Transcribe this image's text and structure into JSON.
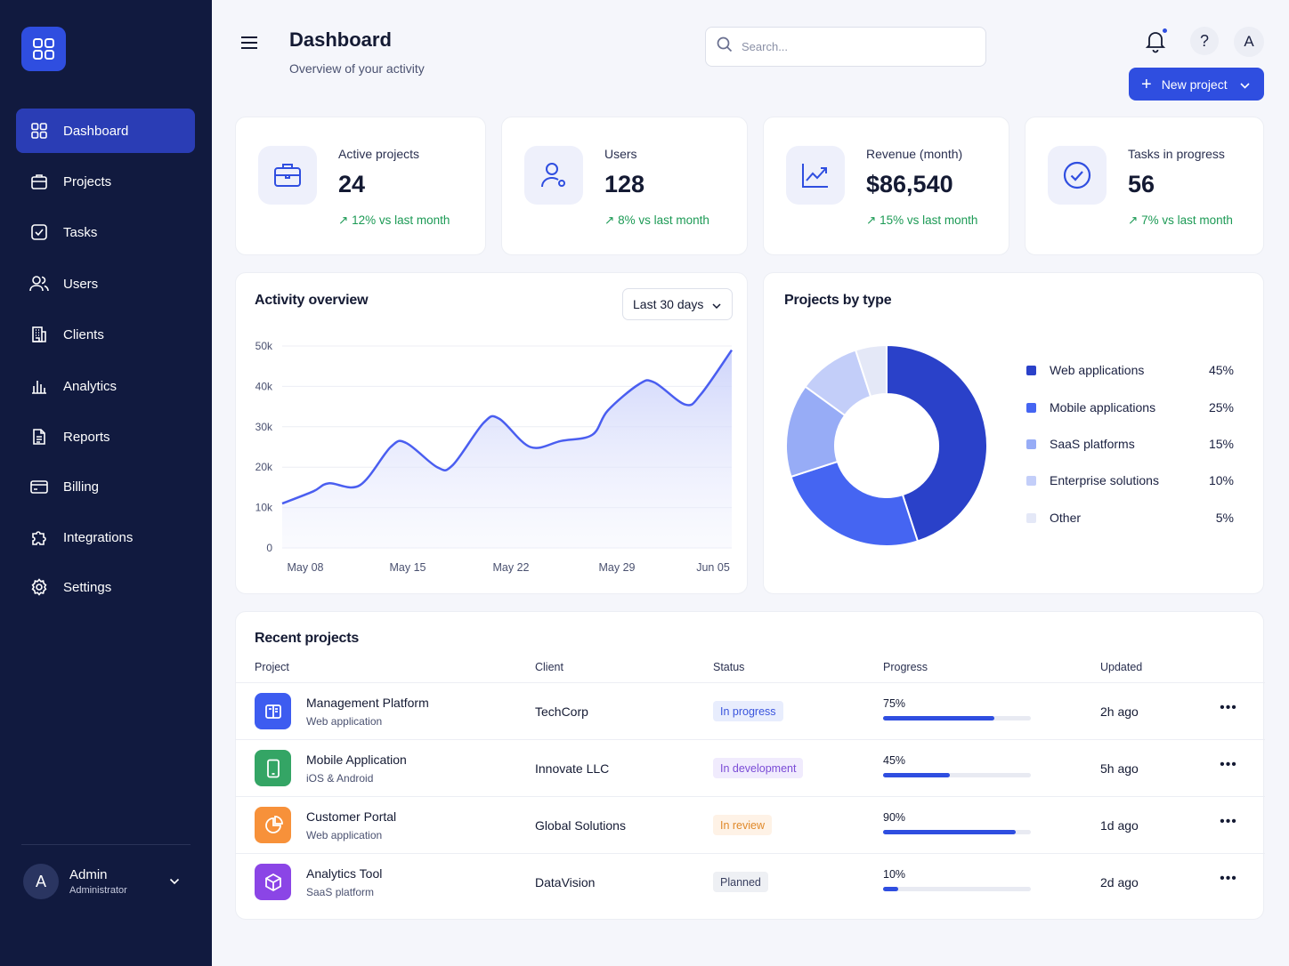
{
  "sidebar": {
    "items": [
      {
        "label": "Dashboard",
        "icon": "grid-icon",
        "active": true
      },
      {
        "label": "Projects",
        "icon": "briefcase-icon"
      },
      {
        "label": "Tasks",
        "icon": "checkbox-icon"
      },
      {
        "label": "Users",
        "icon": "users-icon"
      },
      {
        "label": "Clients",
        "icon": "building-icon"
      },
      {
        "label": "Analytics",
        "icon": "bar-chart-icon"
      },
      {
        "label": "Reports",
        "icon": "document-icon"
      },
      {
        "label": "Billing",
        "icon": "credit-card-icon"
      },
      {
        "label": "Integrations",
        "icon": "puzzle-icon"
      },
      {
        "label": "Settings",
        "icon": "gear-icon"
      }
    ],
    "user": {
      "initial": "A",
      "name": "Admin",
      "role": "Administrator"
    }
  },
  "header": {
    "title": "Dashboard",
    "subtitle": "Overview of your activity",
    "search_placeholder": "Search...",
    "help_label": "?",
    "user_initial": "A",
    "new_button": "New project"
  },
  "stats": [
    {
      "label": "Active projects",
      "value": "24",
      "change": "12% vs last month",
      "icon": "briefcase-icon"
    },
    {
      "label": "Users",
      "value": "128",
      "change": "8% vs last month",
      "icon": "user-icon"
    },
    {
      "label": "Revenue (month)",
      "value": "$86,540",
      "change": "15% vs last month",
      "icon": "trend-up-icon"
    },
    {
      "label": "Tasks in progress",
      "value": "56",
      "change": "7% vs last month",
      "icon": "check-circle-icon"
    }
  ],
  "activity": {
    "title": "Activity overview",
    "range": "Last 30 days"
  },
  "projects_type": {
    "title": "Projects by type"
  },
  "chart_data": [
    {
      "type": "area",
      "title": "Activity overview",
      "ylim": [
        0,
        50000
      ],
      "yticks": [
        "0",
        "10k",
        "20k",
        "30k",
        "40k",
        "50k"
      ],
      "xticks": [
        "May 08",
        "May 15",
        "May 22",
        "May 29",
        "Jun 05"
      ],
      "x": [
        "May 07",
        "May 09",
        "May 10",
        "May 12",
        "May 14",
        "May 15",
        "May 17",
        "May 18",
        "May 20",
        "May 21",
        "May 23",
        "May 25",
        "May 27",
        "May 28",
        "May 30",
        "May 31",
        "Jun 02",
        "Jun 03",
        "Jun 05"
      ],
      "values": [
        11000,
        14000,
        16000,
        15500,
        25000,
        26000,
        20000,
        20500,
        31000,
        32000,
        25000,
        26500,
        28000,
        34000,
        40500,
        41000,
        35500,
        38000,
        49000
      ],
      "grid": true,
      "colors": {
        "line": "#4a5ef0",
        "fill": "#dfe3fb"
      }
    },
    {
      "type": "pie",
      "title": "Projects by type",
      "donut": true,
      "categories": [
        "Web applications",
        "Mobile applications",
        "SaaS platforms",
        "Enterprise solutions",
        "Other"
      ],
      "values": [
        45,
        25,
        15,
        10,
        5
      ],
      "labels": [
        "45%",
        "25%",
        "15%",
        "10%",
        "5%"
      ],
      "colors": [
        "#2a41c9",
        "#4565f2",
        "#97acf6",
        "#c3cef9",
        "#e4e8f7"
      ],
      "legend": "right"
    }
  ],
  "recent": {
    "title": "Recent projects",
    "columns": [
      "Project",
      "Client",
      "Status",
      "Progress",
      "Updated"
    ],
    "rows": [
      {
        "name": "Management Platform",
        "type": "Web application",
        "client": "TechCorp",
        "status": "In progress",
        "status_bg": "#e8edfd",
        "status_fg": "#3a55dd",
        "progress": "75%",
        "progress_value": 0.75,
        "updated": "2h ago",
        "icon": "board-icon",
        "icon_color": "#3d5cf0",
        "more": "•••"
      },
      {
        "name": "Mobile Application",
        "type": "iOS & Android",
        "client": "Innovate LLC",
        "status": "In development",
        "status_bg": "#f0ebfd",
        "status_fg": "#7a4bd6",
        "progress": "45%",
        "progress_value": 0.45,
        "updated": "5h ago",
        "icon": "phone-icon",
        "icon_color": "#34a565",
        "more": "•••"
      },
      {
        "name": "Customer Portal",
        "type": "Web application",
        "client": "Global Solutions",
        "status": "In review",
        "status_bg": "#fef2e6",
        "status_fg": "#e0892a",
        "progress": "90%",
        "progress_value": 0.9,
        "updated": "1d ago",
        "icon": "pie-chart-icon",
        "icon_color": "#f7913a",
        "more": "•••"
      },
      {
        "name": "Analytics Tool",
        "type": "SaaS platform",
        "client": "DataVision",
        "status": "Planned",
        "status_bg": "#eef0f4",
        "status_fg": "#3a4060",
        "progress": "10%",
        "progress_value": 0.1,
        "updated": "2d ago",
        "icon": "cube-icon",
        "icon_color": "#8b45e6",
        "more": "•••"
      }
    ]
  }
}
